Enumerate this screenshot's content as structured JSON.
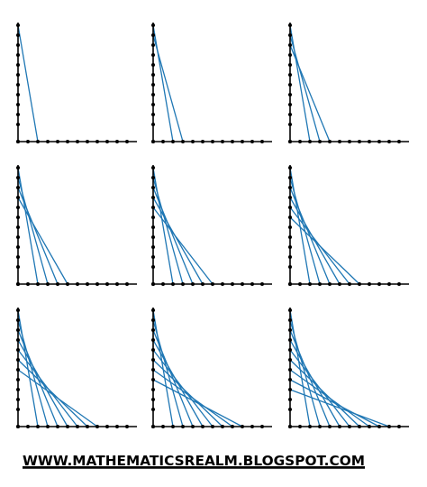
{
  "footer": {
    "text": "WWW.MATHEMATICSREALM.BLOGSPOT.COM"
  }
}
